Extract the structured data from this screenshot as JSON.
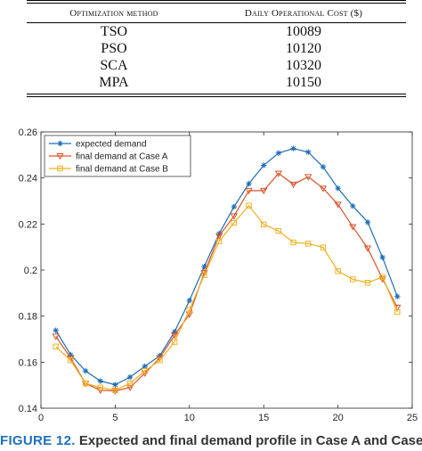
{
  "table": {
    "headers": [
      "Optimization method",
      "Daily Operational Cost ($)"
    ],
    "rows": [
      {
        "method": "TSO",
        "cost": "10089"
      },
      {
        "method": "PSO",
        "cost": "10120"
      },
      {
        "method": "SCA",
        "cost": "10320"
      },
      {
        "method": "MPA",
        "cost": "10150"
      }
    ]
  },
  "caption": {
    "label": "FIGURE 12.",
    "text": " Expected and final demand profile in Case A and Case B."
  },
  "chart_data": {
    "type": "line",
    "title": "",
    "xlabel": "",
    "ylabel": "",
    "xlim": [
      0,
      25
    ],
    "ylim": [
      0.14,
      0.26
    ],
    "xticks": [
      0,
      5,
      10,
      15,
      20,
      25
    ],
    "yticks": [
      0.14,
      0.16,
      0.18,
      0.2,
      0.22,
      0.24,
      0.26
    ],
    "grid": false,
    "legend_position": "top-left",
    "x": [
      1,
      2,
      3,
      4,
      5,
      6,
      7,
      8,
      9,
      10,
      11,
      12,
      13,
      14,
      15,
      16,
      17,
      18,
      19,
      20,
      21,
      22,
      23,
      24
    ],
    "series": [
      {
        "name": "expected demand",
        "color": "#1f6db5",
        "marker": "star",
        "values": [
          0.1738,
          0.1632,
          0.1562,
          0.1518,
          0.1502,
          0.1535,
          0.1582,
          0.1628,
          0.1732,
          0.1868,
          0.2015,
          0.2158,
          0.2275,
          0.2375,
          0.2455,
          0.2508,
          0.2528,
          0.2512,
          0.2448,
          0.2355,
          0.2278,
          0.2208,
          0.2055,
          0.1885
        ]
      },
      {
        "name": "final demand at Case A",
        "color": "#d9532a",
        "marker": "triangle-down",
        "values": [
          0.1712,
          0.1618,
          0.1508,
          0.1478,
          0.1475,
          0.149,
          0.1552,
          0.1618,
          0.1718,
          0.1808,
          0.1988,
          0.2148,
          0.2235,
          0.2345,
          0.2345,
          0.242,
          0.2372,
          0.2405,
          0.2355,
          0.2285,
          0.2188,
          0.2095,
          0.1962,
          0.1838
        ]
      },
      {
        "name": "final demand at Case B",
        "color": "#f0b01c",
        "marker": "square",
        "values": [
          0.1668,
          0.1608,
          0.1508,
          0.149,
          0.1478,
          0.1508,
          0.1562,
          0.1608,
          0.1688,
          0.1828,
          0.1978,
          0.2125,
          0.2205,
          0.228,
          0.2198,
          0.217,
          0.212,
          0.2115,
          0.2098,
          0.1995,
          0.196,
          0.1945,
          0.197,
          0.1818
        ]
      }
    ]
  }
}
